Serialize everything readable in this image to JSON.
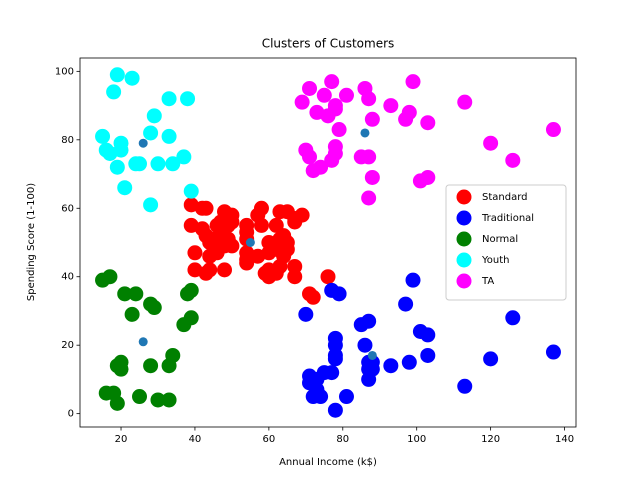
{
  "chart_data": {
    "type": "scatter",
    "title": "Clusters of Customers",
    "x_label": "Annual Income (k$)",
    "y_label": "Spending Score (1-100)",
    "xlim": [
      8.9,
      143.1
    ],
    "ylim": [
      -3.9,
      103.9
    ],
    "xticks": [
      20,
      40,
      60,
      80,
      100,
      120,
      140
    ],
    "yticks": [
      0,
      20,
      40,
      60,
      80,
      100
    ],
    "legend": "center right",
    "series": [
      {
        "name": "Standard",
        "color": "#ff0000",
        "x": [
          39,
          39,
          40,
          40,
          42,
          43,
          42,
          43,
          44,
          44,
          44,
          45,
          46,
          46,
          47,
          47,
          48,
          48,
          48,
          49,
          50,
          50,
          50,
          54,
          54,
          54,
          54,
          54,
          54,
          57,
          57,
          58,
          58,
          59,
          60,
          60,
          60,
          60,
          61,
          62,
          62,
          62,
          63,
          63,
          63,
          64,
          64,
          65,
          65,
          65,
          67,
          67,
          67,
          67,
          69,
          71,
          72,
          76,
          43,
          49
        ],
        "values": [
          61,
          55,
          47,
          42,
          60,
          60,
          54,
          52,
          50,
          42,
          46,
          51,
          55,
          47,
          52,
          56,
          59,
          49,
          42,
          55,
          58,
          49,
          56,
          55,
          47,
          44,
          51,
          53,
          45,
          58,
          46,
          60,
          55,
          41,
          40,
          42,
          47,
          50,
          49,
          41,
          48,
          55,
          59,
          51,
          43,
          46,
          52,
          59,
          48,
          50,
          56,
          40,
          43,
          57,
          58,
          35,
          34,
          40,
          41,
          51
        ]
      },
      {
        "name": "Traditional",
        "color": "#0000ff",
        "x": [
          70,
          71,
          71,
          72,
          73,
          73,
          74,
          75,
          77,
          78,
          78,
          78,
          78,
          78,
          79,
          81,
          85,
          86,
          87,
          87,
          87,
          87,
          88,
          88,
          93,
          97,
          98,
          99,
          101,
          103,
          103,
          113,
          120,
          126,
          137,
          77
        ],
        "values": [
          29,
          11,
          9,
          5,
          10,
          7,
          5,
          12,
          36,
          22,
          17,
          16,
          1,
          20,
          35,
          5,
          26,
          20,
          27,
          13,
          10,
          15,
          13,
          15,
          14,
          32,
          15,
          39,
          24,
          17,
          23,
          8,
          16,
          28,
          18,
          12
        ]
      },
      {
        "name": "Normal",
        "color": "#008000",
        "x": [
          15,
          16,
          17,
          18,
          19,
          19,
          20,
          20,
          21,
          23,
          24,
          25,
          28,
          28,
          29,
          30,
          33,
          33,
          34,
          37,
          38,
          39,
          39
        ],
        "values": [
          39,
          6,
          40,
          6,
          3,
          14,
          15,
          13,
          35,
          29,
          35,
          5,
          32,
          14,
          31,
          4,
          4,
          14,
          17,
          26,
          35,
          36,
          28
        ]
      },
      {
        "name": "Youth",
        "color": "#00ffff",
        "x": [
          15,
          16,
          17,
          18,
          19,
          19,
          20,
          20,
          21,
          23,
          24,
          25,
          28,
          28,
          29,
          30,
          33,
          33,
          34,
          37,
          38,
          39
        ],
        "values": [
          81,
          77,
          76,
          94,
          99,
          72,
          77,
          79,
          66,
          98,
          73,
          73,
          82,
          61,
          87,
          73,
          92,
          81,
          73,
          75,
          92,
          65
        ]
      },
      {
        "name": "TA",
        "color": "#ff00ff",
        "x": [
          69,
          70,
          71,
          71,
          72,
          73,
          74,
          75,
          76,
          77,
          77,
          78,
          78,
          78,
          78,
          79,
          81,
          85,
          86,
          87,
          87,
          87,
          88,
          88,
          93,
          97,
          98,
          99,
          101,
          103,
          103,
          113,
          120,
          126,
          137
        ],
        "values": [
          91,
          77,
          95,
          75,
          71,
          88,
          72,
          93,
          87,
          97,
          74,
          90,
          76,
          89,
          78,
          83,
          93,
          75,
          95,
          63,
          75,
          92,
          86,
          69,
          90,
          86,
          88,
          97,
          68,
          85,
          69,
          91,
          79,
          74,
          83
        ]
      },
      {
        "color": "#1f77b4",
        "x": [
          26,
          55,
          86,
          26,
          88
        ],
        "values": [
          79,
          50,
          82,
          21,
          17
        ]
      }
    ]
  }
}
